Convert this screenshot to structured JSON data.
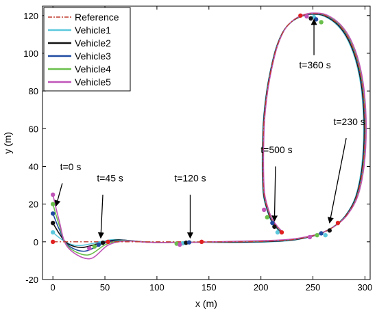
{
  "chart_data": {
    "type": "line",
    "xlabel": "x (m)",
    "ylabel": "y (m)",
    "xlim": [
      -10,
      305
    ],
    "ylim": [
      -20,
      125
    ],
    "xticks": [
      0,
      50,
      100,
      150,
      200,
      250,
      300
    ],
    "yticks": [
      -20,
      0,
      20,
      40,
      60,
      80,
      100,
      120
    ],
    "xtick_labels": [
      "0",
      "50",
      "100",
      "150",
      "200",
      "250",
      "300"
    ],
    "ytick_labels": [
      "-20",
      "0",
      "20",
      "40",
      "60",
      "80",
      "100",
      "120"
    ],
    "grid": false,
    "legend_position": "top-left",
    "reference": {
      "name": "Reference",
      "color": "#c0392b",
      "style": "dash-dot",
      "points": [
        [
          0,
          0
        ],
        [
          60,
          0
        ],
        [
          120,
          0
        ],
        [
          180,
          0
        ],
        [
          215,
          0.5
        ],
        [
          235,
          1.5
        ],
        [
          255,
          4
        ],
        [
          270,
          8
        ],
        [
          282,
          14
        ],
        [
          292,
          24
        ],
        [
          298,
          40
        ],
        [
          300,
          60
        ],
        [
          298,
          80
        ],
        [
          293,
          95
        ],
        [
          285,
          107
        ],
        [
          275,
          115
        ],
        [
          262,
          120
        ],
        [
          250,
          121
        ],
        [
          240,
          120
        ],
        [
          230,
          117
        ],
        [
          222,
          112
        ],
        [
          215,
          103
        ],
        [
          210,
          92
        ],
        [
          206,
          80
        ],
        [
          203,
          65
        ],
        [
          202,
          50
        ],
        [
          202,
          35
        ],
        [
          203,
          25
        ],
        [
          206,
          18
        ],
        [
          210,
          12
        ],
        [
          215,
          8
        ],
        [
          220,
          5
        ]
      ]
    },
    "series": [
      {
        "name": "Vehicle1",
        "color": "#5bc8dc",
        "start_y": 5,
        "dip": -2,
        "dip_x": 25,
        "markers": [
          [
            0,
            5
          ],
          [
            45,
            -0.8
          ],
          [
            125,
            -0.8
          ],
          [
            262,
            3.5
          ],
          [
            251,
            119.2
          ],
          [
            216,
            5
          ]
        ]
      },
      {
        "name": "Vehicle2",
        "color": "#111111",
        "start_y": 10,
        "dip": -3,
        "dip_x": 28,
        "markers": [
          [
            0,
            10
          ],
          [
            48,
            -0.5
          ],
          [
            128,
            -0.5
          ],
          [
            266,
            6
          ],
          [
            248,
            118.5
          ],
          [
            213,
            8
          ]
        ]
      },
      {
        "name": "Vehicle3",
        "color": "#1f4aa0",
        "start_y": 15,
        "dip": -5,
        "dip_x": 30,
        "markers": [
          [
            0,
            15
          ],
          [
            44,
            -1.5
          ],
          [
            131,
            -0.3
          ],
          [
            258,
            4.5
          ],
          [
            253,
            118
          ],
          [
            211,
            10
          ]
        ]
      },
      {
        "name": "Vehicle4",
        "color": "#6abf4b",
        "start_y": 20,
        "dip": -7,
        "dip_x": 33,
        "markers": [
          [
            0,
            20
          ],
          [
            40,
            -2.5
          ],
          [
            119,
            -1
          ],
          [
            254,
            3.5
          ],
          [
            258,
            116.5
          ],
          [
            206,
            13
          ]
        ]
      },
      {
        "name": "Vehicle5",
        "color": "#c054b8",
        "start_y": 25,
        "dip": -9,
        "dip_x": 35,
        "markers": [
          [
            0,
            25
          ],
          [
            35,
            -3.5
          ],
          [
            122,
            -1.5
          ],
          [
            247,
            2.5
          ],
          [
            244,
            119.6
          ],
          [
            203,
            17
          ]
        ]
      }
    ],
    "reference_markers": [
      [
        0,
        0
      ],
      [
        53,
        0
      ],
      [
        143,
        0
      ],
      [
        274,
        10
      ],
      [
        238,
        120
      ],
      [
        220,
        5
      ]
    ],
    "annotations": [
      {
        "text": "t=0 s",
        "label_at": [
          17,
          38
        ],
        "arrow_from": [
          9,
          31
        ],
        "arrow_to": [
          3,
          19
        ]
      },
      {
        "text": "t=45 s",
        "label_at": [
          55,
          32
        ],
        "arrow_from": [
          48,
          25
        ],
        "arrow_to": [
          46,
          2
        ]
      },
      {
        "text": "t=120 s",
        "label_at": [
          132,
          32
        ],
        "arrow_from": [
          132,
          25
        ],
        "arrow_to": [
          132,
          2
        ]
      },
      {
        "text": "t=230 s",
        "label_at": [
          285,
          62
        ],
        "arrow_from": [
          282,
          55
        ],
        "arrow_to": [
          266,
          10
        ]
      },
      {
        "text": "t=500 s",
        "label_at": [
          215,
          47
        ],
        "arrow_from": [
          214,
          40
        ],
        "arrow_to": [
          213,
          11
        ]
      },
      {
        "text": "t=360 s",
        "label_at": [
          252,
          92
        ],
        "arrow_from": [
          251,
          99
        ],
        "arrow_to": [
          251,
          118
        ]
      }
    ]
  }
}
